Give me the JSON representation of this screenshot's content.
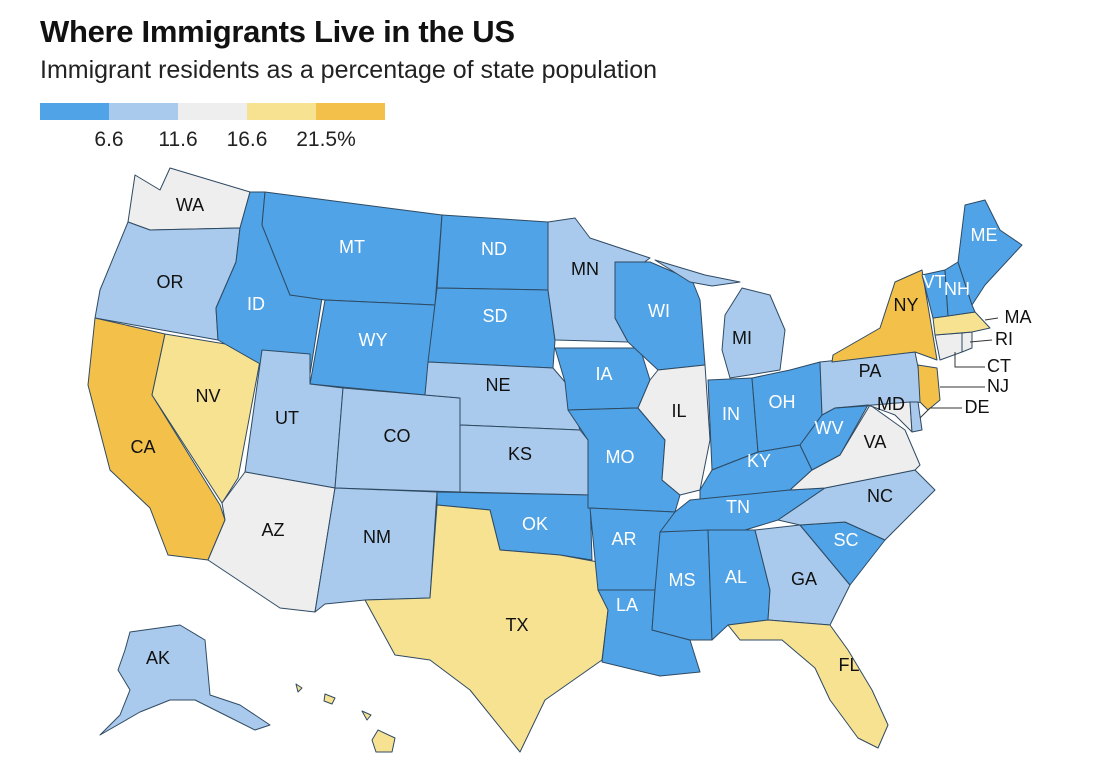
{
  "title": "Where Immigrants Live in the US",
  "subtitle": "Immigrant residents as a percentage of state population",
  "colors": {
    "c1": "#4fa3e6",
    "c2": "#a9caec",
    "c3": "#eeeeee",
    "c4": "#f7e291",
    "c5": "#f3c14a"
  },
  "legend": {
    "swatches": [
      "c1",
      "c2",
      "c3",
      "c4",
      "c5"
    ],
    "ticks": [
      "6.6",
      "11.6",
      "16.6",
      "21.5%"
    ]
  },
  "states": {
    "WA": {
      "label": "WA",
      "bin": "c3"
    },
    "OR": {
      "label": "OR",
      "bin": "c2"
    },
    "CA": {
      "label": "CA",
      "bin": "c5"
    },
    "NV": {
      "label": "NV",
      "bin": "c4"
    },
    "ID": {
      "label": "ID",
      "bin": "c1"
    },
    "MT": {
      "label": "MT",
      "bin": "c1"
    },
    "WY": {
      "label": "WY",
      "bin": "c1"
    },
    "UT": {
      "label": "UT",
      "bin": "c2"
    },
    "AZ": {
      "label": "AZ",
      "bin": "c3"
    },
    "CO": {
      "label": "CO",
      "bin": "c2"
    },
    "NM": {
      "label": "NM",
      "bin": "c2"
    },
    "ND": {
      "label": "ND",
      "bin": "c1"
    },
    "SD": {
      "label": "SD",
      "bin": "c1"
    },
    "NE": {
      "label": "NE",
      "bin": "c2"
    },
    "KS": {
      "label": "KS",
      "bin": "c2"
    },
    "OK": {
      "label": "OK",
      "bin": "c1"
    },
    "TX": {
      "label": "TX",
      "bin": "c4"
    },
    "MN": {
      "label": "MN",
      "bin": "c2"
    },
    "IA": {
      "label": "IA",
      "bin": "c1"
    },
    "MO": {
      "label": "MO",
      "bin": "c1"
    },
    "AR": {
      "label": "AR",
      "bin": "c1"
    },
    "LA": {
      "label": "LA",
      "bin": "c1"
    },
    "WI": {
      "label": "WI",
      "bin": "c1"
    },
    "IL": {
      "label": "IL",
      "bin": "c3"
    },
    "MI": {
      "label": "MI",
      "bin": "c2"
    },
    "IN": {
      "label": "IN",
      "bin": "c1"
    },
    "OH": {
      "label": "OH",
      "bin": "c1"
    },
    "KY": {
      "label": "KY",
      "bin": "c1"
    },
    "TN": {
      "label": "TN",
      "bin": "c1"
    },
    "MS": {
      "label": "MS",
      "bin": "c1"
    },
    "AL": {
      "label": "AL",
      "bin": "c1"
    },
    "GA": {
      "label": "GA",
      "bin": "c2"
    },
    "FL": {
      "label": "FL",
      "bin": "c4"
    },
    "SC": {
      "label": "SC",
      "bin": "c1"
    },
    "NC": {
      "label": "NC",
      "bin": "c2"
    },
    "VA": {
      "label": "VA",
      "bin": "c3"
    },
    "WV": {
      "label": "WV",
      "bin": "c1"
    },
    "PA": {
      "label": "PA",
      "bin": "c2"
    },
    "NY": {
      "label": "NY",
      "bin": "c5"
    },
    "NJ": {
      "label": "NJ",
      "bin": "c5"
    },
    "DE": {
      "label": "DE",
      "bin": "c2"
    },
    "MD": {
      "label": "MD",
      "bin": "c3"
    },
    "CT": {
      "label": "CT",
      "bin": "c3"
    },
    "RI": {
      "label": "RI",
      "bin": "c3"
    },
    "MA": {
      "label": "MA",
      "bin": "c4"
    },
    "VT": {
      "label": "VT",
      "bin": "c1"
    },
    "NH": {
      "label": "NH",
      "bin": "c1"
    },
    "ME": {
      "label": "ME",
      "bin": "c1"
    },
    "AK": {
      "label": "AK",
      "bin": "c2"
    },
    "HI": {
      "label": "",
      "bin": "c4"
    }
  }
}
